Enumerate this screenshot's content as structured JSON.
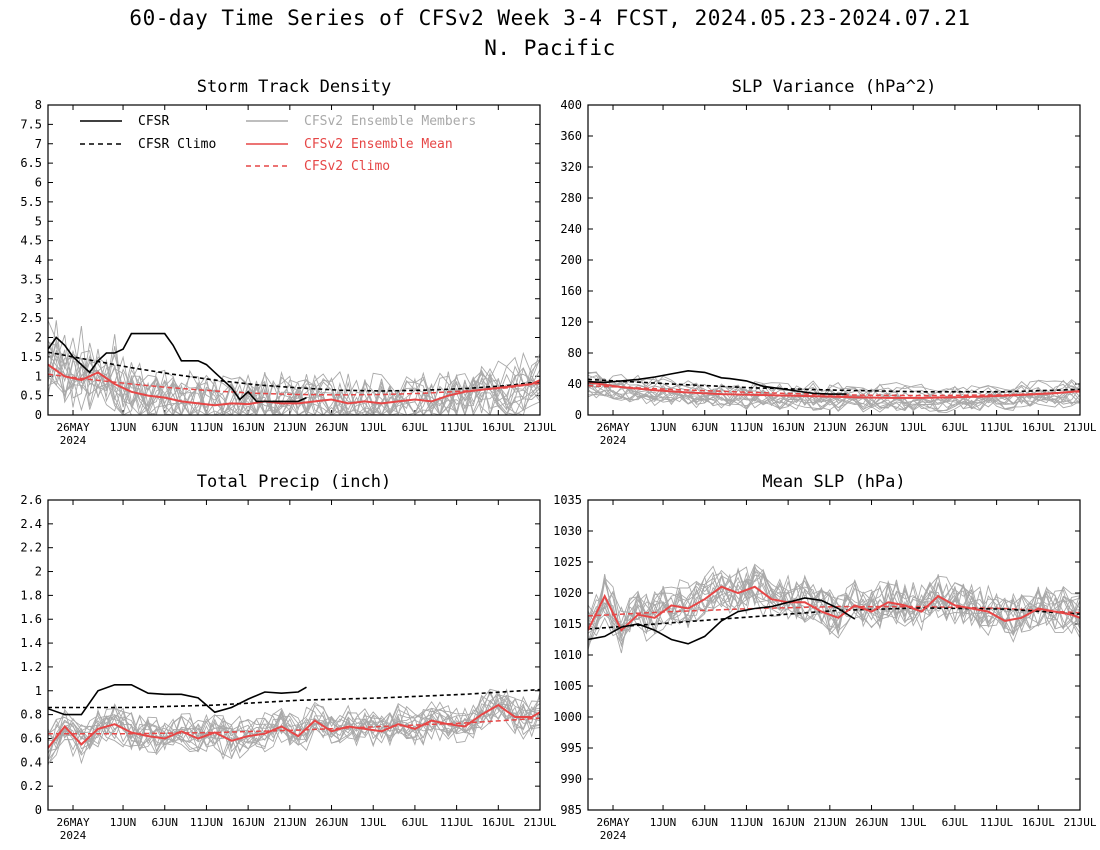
{
  "page": {
    "title_line1": "60-day Time Series of CFSv2 Week 3-4 FCST, 2024.05.23-2024.07.21",
    "title_line2": "N. Pacific"
  },
  "colors": {
    "cfsr": "#000000",
    "cfsr_climo": "#000000",
    "members": "#a9a9a9",
    "ens_mean": "#e64646",
    "cfsv2_climo": "#e64646"
  },
  "legend": {
    "items": [
      {
        "label": "CFSR",
        "style": "solid",
        "color": "#000000"
      },
      {
        "label": "CFSR Climo",
        "style": "dashed",
        "color": "#000000"
      },
      {
        "label": "CFSv2 Ensemble Members",
        "style": "solid",
        "color": "#a9a9a9"
      },
      {
        "label": "CFSv2 Ensemble Mean",
        "style": "solid",
        "color": "#e64646"
      },
      {
        "label": "CFSv2 Climo",
        "style": "dashed",
        "color": "#e64646"
      }
    ]
  },
  "x_axis": {
    "tick_labels": [
      "26MAY",
      "1JUN",
      "6JUN",
      "11JUN",
      "16JUN",
      "21JUN",
      "26JUN",
      "1JUL",
      "6JUL",
      "11JUL",
      "16JUL",
      "21JUL"
    ],
    "tick_days": [
      3,
      9,
      14,
      19,
      24,
      29,
      34,
      39,
      44,
      49,
      54,
      59
    ],
    "year_label": "2024",
    "range_days": [
      0,
      59
    ]
  },
  "chart_data": [
    {
      "type": "line",
      "title": "Storm Track Density",
      "ylim": [
        0,
        8
      ],
      "yticks": [
        "0",
        "0.5",
        "1",
        "1.5",
        "2",
        "2.5",
        "3",
        "3.5",
        "4",
        "4.5",
        "5",
        "5.5",
        "6",
        "6.5",
        "7",
        "7.5",
        "8"
      ],
      "n_members": 16,
      "series": [
        {
          "name": "CFSR",
          "x": [
            0,
            1,
            2,
            3,
            4,
            5,
            6,
            7,
            8,
            9,
            10,
            11,
            12,
            13,
            14,
            15,
            16,
            17,
            18,
            19,
            20,
            21,
            22,
            23,
            24,
            25,
            26,
            27,
            28,
            29,
            30,
            31
          ],
          "values": [
            1.7,
            2.0,
            1.8,
            1.5,
            1.3,
            1.1,
            1.4,
            1.6,
            1.6,
            1.7,
            2.1,
            2.1,
            2.1,
            2.1,
            2.1,
            1.8,
            1.4,
            1.4,
            1.4,
            1.3,
            1.1,
            0.9,
            0.7,
            0.4,
            0.6,
            0.35,
            0.35,
            0.35,
            0.35,
            0.35,
            0.35,
            0.45
          ]
        },
        {
          "name": "CFSR Climo",
          "x": [
            0,
            5,
            10,
            15,
            20,
            25,
            30,
            35,
            40,
            45,
            50,
            55,
            59
          ],
          "values": [
            1.62,
            1.42,
            1.22,
            1.05,
            0.9,
            0.78,
            0.7,
            0.64,
            0.62,
            0.64,
            0.68,
            0.76,
            0.86
          ]
        },
        {
          "name": "CFSv2 Ensemble Mean",
          "x": [
            0,
            2,
            4,
            6,
            8,
            10,
            12,
            14,
            16,
            18,
            20,
            22,
            24,
            26,
            28,
            30,
            32,
            34,
            36,
            38,
            40,
            42,
            44,
            46,
            48,
            50,
            52,
            54,
            56,
            58,
            59
          ],
          "values": [
            1.3,
            1.0,
            0.9,
            1.1,
            0.8,
            0.6,
            0.5,
            0.45,
            0.35,
            0.3,
            0.25,
            0.3,
            0.28,
            0.35,
            0.3,
            0.3,
            0.35,
            0.4,
            0.3,
            0.35,
            0.3,
            0.35,
            0.4,
            0.35,
            0.5,
            0.6,
            0.65,
            0.7,
            0.75,
            0.8,
            0.9
          ]
        },
        {
          "name": "CFSv2 Climo",
          "x": [
            0,
            5,
            10,
            15,
            20,
            25,
            30,
            35,
            40,
            45,
            50,
            55,
            59
          ],
          "values": [
            1.05,
            0.92,
            0.8,
            0.7,
            0.62,
            0.56,
            0.53,
            0.52,
            0.53,
            0.56,
            0.62,
            0.7,
            0.82
          ]
        }
      ]
    },
    {
      "type": "line",
      "title": "SLP Variance (hPa^2)",
      "ylim": [
        0,
        400
      ],
      "yticks": [
        "0",
        "40",
        "80",
        "120",
        "160",
        "200",
        "240",
        "280",
        "320",
        "360",
        "400"
      ],
      "n_members": 16,
      "series": [
        {
          "name": "CFSR",
          "x": [
            0,
            2,
            4,
            6,
            8,
            10,
            12,
            14,
            16,
            17,
            19,
            21,
            23,
            25,
            27,
            29,
            31
          ],
          "values": [
            43,
            42,
            44,
            46,
            49,
            53,
            57,
            55,
            48,
            47,
            44,
            37,
            34,
            31,
            28,
            27,
            27
          ]
        },
        {
          "name": "CFSR Climo",
          "x": [
            0,
            10,
            20,
            30,
            40,
            50,
            59
          ],
          "values": [
            46,
            40,
            35,
            32,
            30,
            30,
            33
          ]
        },
        {
          "name": "CFSv2 Ensemble Mean",
          "x": [
            0,
            4,
            8,
            12,
            16,
            20,
            24,
            28,
            32,
            36,
            40,
            44,
            48,
            52,
            56,
            59
          ],
          "values": [
            42,
            36,
            32,
            29,
            27,
            26,
            25,
            24,
            23,
            22,
            22,
            23,
            24,
            26,
            28,
            31
          ]
        },
        {
          "name": "CFSv2 Climo",
          "x": [
            0,
            10,
            20,
            30,
            40,
            50,
            59
          ],
          "values": [
            38,
            33,
            29,
            26,
            25,
            26,
            30
          ]
        }
      ]
    },
    {
      "type": "line",
      "title": "Total Precip (inch)",
      "ylim": [
        0,
        2.6
      ],
      "yticks": [
        "0",
        "0.2",
        "0.4",
        "0.6",
        "0.8",
        "1",
        "1.2",
        "1.4",
        "1.6",
        "1.8",
        "2",
        "2.2",
        "2.4",
        "2.6"
      ],
      "n_members": 16,
      "series": [
        {
          "name": "CFSR",
          "x": [
            0,
            2,
            4,
            6,
            8,
            10,
            12,
            14,
            16,
            18,
            20,
            22,
            24,
            26,
            28,
            30,
            31
          ],
          "values": [
            0.85,
            0.8,
            0.8,
            1.0,
            1.05,
            1.05,
            0.98,
            0.97,
            0.97,
            0.94,
            0.82,
            0.86,
            0.93,
            0.99,
            0.98,
            0.99,
            1.03
          ]
        },
        {
          "name": "CFSR Climo",
          "x": [
            0,
            10,
            20,
            30,
            40,
            50,
            59
          ],
          "values": [
            0.86,
            0.86,
            0.88,
            0.92,
            0.94,
            0.97,
            1.01
          ]
        },
        {
          "name": "CFSv2 Ensemble Mean",
          "x": [
            0,
            2,
            4,
            6,
            8,
            10,
            12,
            14,
            16,
            18,
            20,
            22,
            24,
            26,
            28,
            30,
            32,
            34,
            36,
            38,
            40,
            42,
            44,
            46,
            48,
            50,
            52,
            54,
            56,
            58,
            59
          ],
          "values": [
            0.52,
            0.7,
            0.55,
            0.68,
            0.72,
            0.65,
            0.62,
            0.6,
            0.66,
            0.6,
            0.65,
            0.58,
            0.62,
            0.64,
            0.7,
            0.62,
            0.75,
            0.66,
            0.7,
            0.68,
            0.66,
            0.72,
            0.68,
            0.75,
            0.72,
            0.7,
            0.8,
            0.88,
            0.78,
            0.78,
            0.82
          ]
        },
        {
          "name": "CFSv2 Climo",
          "x": [
            0,
            10,
            20,
            30,
            40,
            50,
            59
          ],
          "values": [
            0.64,
            0.64,
            0.65,
            0.67,
            0.7,
            0.73,
            0.77
          ]
        }
      ]
    },
    {
      "type": "line",
      "title": "Mean SLP (hPa)",
      "ylim": [
        985,
        1035
      ],
      "yticks": [
        "985",
        "990",
        "995",
        "1000",
        "1005",
        "1010",
        "1015",
        "1020",
        "1025",
        "1030",
        "1035"
      ],
      "n_members": 16,
      "series": [
        {
          "name": "CFSR",
          "x": [
            0,
            2,
            4,
            6,
            8,
            10,
            12,
            14,
            16,
            18,
            20,
            22,
            24,
            26,
            28,
            30,
            32
          ],
          "values": [
            1012.5,
            1013,
            1014.5,
            1015,
            1014,
            1012.5,
            1011.8,
            1013,
            1015.5,
            1017,
            1017.5,
            1017.8,
            1018.5,
            1019.2,
            1018.8,
            1017.5,
            1015.8
          ]
        },
        {
          "name": "CFSR Climo",
          "x": [
            0,
            10,
            20,
            30,
            40,
            50,
            59
          ],
          "values": [
            1014.2,
            1015.2,
            1016.2,
            1017.2,
            1017.6,
            1017.4,
            1016.6
          ]
        },
        {
          "name": "CFSv2 Ensemble Mean",
          "x": [
            0,
            2,
            4,
            6,
            8,
            10,
            12,
            14,
            16,
            18,
            20,
            22,
            24,
            26,
            28,
            30,
            32,
            34,
            36,
            38,
            40,
            42,
            44,
            46,
            48,
            50,
            52,
            54,
            56,
            58,
            59
          ],
          "values": [
            1014,
            1019.5,
            1014,
            1016.5,
            1016,
            1018,
            1017.5,
            1019,
            1021,
            1020,
            1021,
            1019,
            1018.5,
            1018.5,
            1017,
            1016,
            1018,
            1017,
            1018.5,
            1018,
            1017,
            1019.5,
            1018,
            1017.5,
            1017,
            1015.5,
            1016,
            1017.5,
            1017,
            1016.5,
            1016
          ]
        },
        {
          "name": "CFSv2 Climo",
          "x": [
            0,
            10,
            20,
            30,
            40,
            50,
            59
          ],
          "values": [
            1016.3,
            1017,
            1017.5,
            1017.8,
            1017.8,
            1017.5,
            1016.8
          ]
        }
      ]
    }
  ]
}
